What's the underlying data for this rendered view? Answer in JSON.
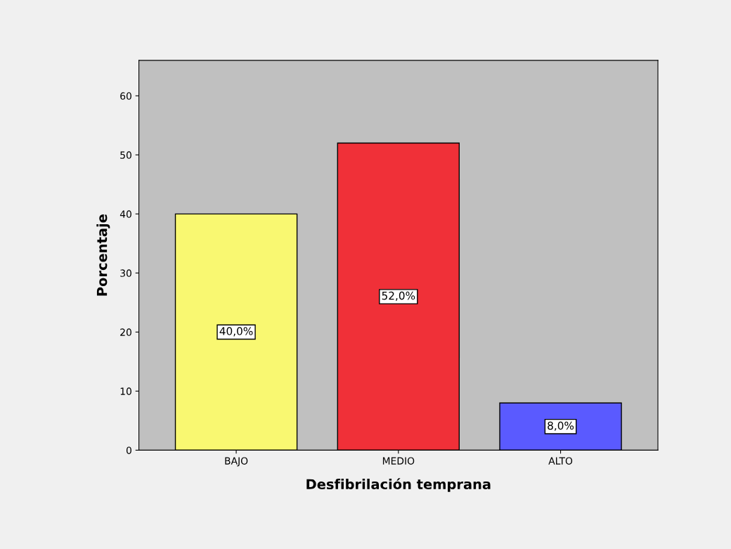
{
  "chart_data": {
    "type": "bar",
    "xlabel": "Desfibrilación temprana",
    "ylabel": "Porcentaje",
    "categories": [
      "BAJO",
      "MEDIO",
      "ALTO"
    ],
    "values": [
      40,
      52,
      8
    ],
    "colors": [
      "#f9f871",
      "#f03038",
      "#5a5aff"
    ],
    "value_labels": [
      "40,0%",
      "52,0%",
      "8,0%"
    ],
    "ylim": [
      0,
      66
    ],
    "yticks": [
      0,
      10,
      20,
      30,
      40,
      50,
      60
    ],
    "grid": false,
    "legend": false
  }
}
